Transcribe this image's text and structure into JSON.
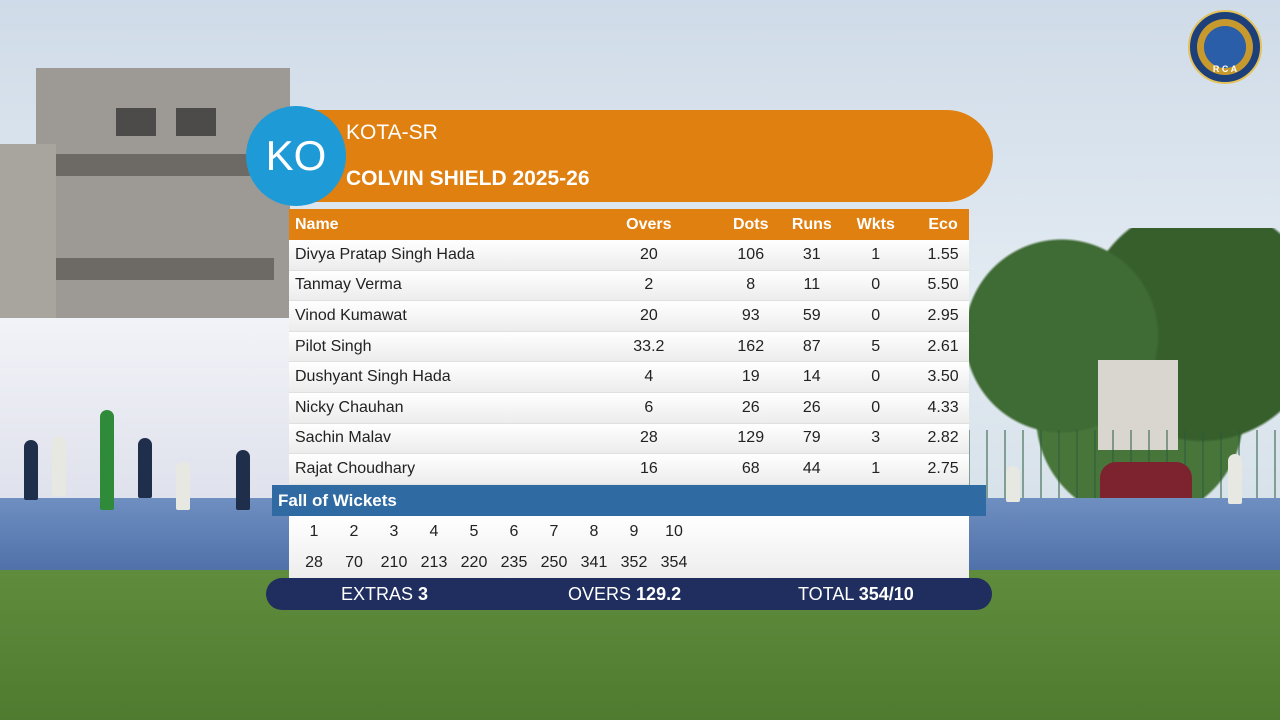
{
  "broadcast": {
    "team_badge": "KO",
    "team_name": "KOTA-SR",
    "competition": "COLVIN SHIELD 2025-26",
    "logo_text": "R C A"
  },
  "bowling": {
    "headers": {
      "name": "Name",
      "overs": "Overs",
      "dots": "Dots",
      "runs": "Runs",
      "wkts": "Wkts",
      "eco": "Eco"
    },
    "rows": [
      {
        "name": "Divya Pratap Singh Hada",
        "overs": "20",
        "dots": "106",
        "runs": "31",
        "wkts": "1",
        "eco": "1.55"
      },
      {
        "name": "Tanmay Verma",
        "overs": "2",
        "dots": "8",
        "runs": "11",
        "wkts": "0",
        "eco": "5.50"
      },
      {
        "name": "Vinod Kumawat",
        "overs": "20",
        "dots": "93",
        "runs": "59",
        "wkts": "0",
        "eco": "2.95"
      },
      {
        "name": "Pilot Singh",
        "overs": "33.2",
        "dots": "162",
        "runs": "87",
        "wkts": "5",
        "eco": "2.61"
      },
      {
        "name": "Dushyant Singh Hada",
        "overs": "4",
        "dots": "19",
        "runs": "14",
        "wkts": "0",
        "eco": "3.50"
      },
      {
        "name": "Nicky Chauhan",
        "overs": "6",
        "dots": "26",
        "runs": "26",
        "wkts": "0",
        "eco": "4.33"
      },
      {
        "name": "Sachin Malav",
        "overs": "28",
        "dots": "129",
        "runs": "79",
        "wkts": "3",
        "eco": "2.82"
      },
      {
        "name": "Rajat Choudhary",
        "overs": "16",
        "dots": "68",
        "runs": "44",
        "wkts": "1",
        "eco": "2.75"
      }
    ]
  },
  "fall_of_wickets": {
    "title": "Fall of Wickets",
    "wicket_numbers": [
      "1",
      "2",
      "3",
      "4",
      "5",
      "6",
      "7",
      "8",
      "9",
      "10"
    ],
    "scores": [
      "28",
      "70",
      "210",
      "213",
      "220",
      "235",
      "250",
      "341",
      "352",
      "354"
    ]
  },
  "summary": {
    "extras_label": "EXTRAS",
    "extras_value": "3",
    "overs_label": "OVERS",
    "overs_value": "129.2",
    "total_label": "TOTAL",
    "total_value": "354/10"
  },
  "colors": {
    "orange": "#e08010",
    "blue_badge": "#1e9ad6",
    "fow_blue": "#2f6aa2",
    "footer_navy": "#1f2e5e"
  }
}
